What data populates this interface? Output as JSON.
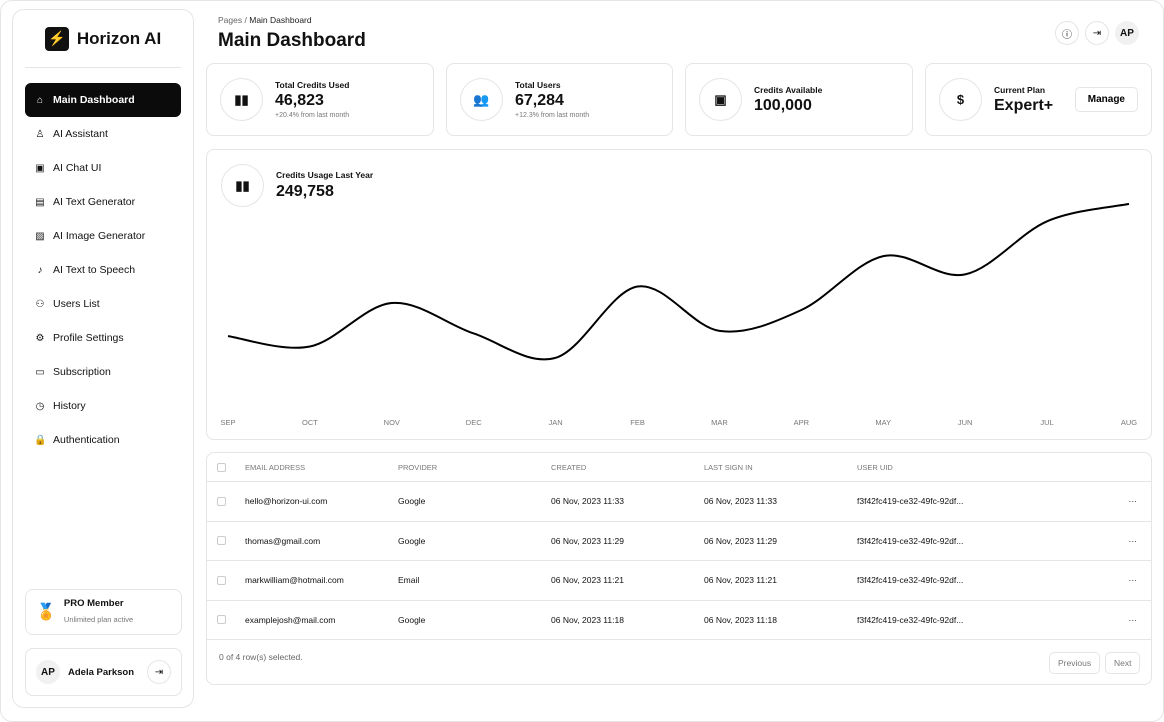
{
  "brand": {
    "name": "Horizon AI",
    "logo_icon": "lightning-icon"
  },
  "sidebar": {
    "items": [
      {
        "label": "Main Dashboard",
        "icon": "home-icon",
        "active": true
      },
      {
        "label": "AI Assistant",
        "icon": "user-icon"
      },
      {
        "label": "AI Chat UI",
        "icon": "chip-icon"
      },
      {
        "label": "AI Text Generator",
        "icon": "document-icon"
      },
      {
        "label": "AI Image Generator",
        "icon": "image-icon"
      },
      {
        "label": "AI Text to Speech",
        "icon": "microphone-icon"
      },
      {
        "label": "Users List",
        "icon": "users-icon"
      },
      {
        "label": "Profile Settings",
        "icon": "gear-icon"
      },
      {
        "label": "Subscription",
        "icon": "credit-card-icon"
      },
      {
        "label": "History",
        "icon": "clock-icon"
      },
      {
        "label": "Authentication",
        "icon": "lock-icon"
      }
    ],
    "pro": {
      "title": "PRO Member",
      "subtitle": "Unlimited plan active"
    },
    "user": {
      "initials": "AP",
      "name": "Adela Parkson"
    }
  },
  "header": {
    "breadcrumb_root": "Pages",
    "breadcrumb_sep": "/",
    "breadcrumb_current": "Main Dashboard",
    "title": "Main Dashboard",
    "avatar": "AP"
  },
  "cards": [
    {
      "label": "Total Credits Used",
      "value": "46,823",
      "sub": "+20.4% from last month",
      "icon": "bar-chart-icon"
    },
    {
      "label": "Total Users",
      "value": "67,284",
      "sub": "+12.3% from last month",
      "icon": "users-icon"
    },
    {
      "label": "Credits Available",
      "value": "100,000",
      "icon": "wallet-icon"
    },
    {
      "label": "Current Plan",
      "value": "Expert+",
      "icon": "dollar-icon",
      "button": "Manage"
    }
  ],
  "chart_data": {
    "type": "line",
    "title": "Credits Usage Last Year",
    "total": "249,758",
    "categories": [
      "SEP",
      "OCT",
      "NOV",
      "DEC",
      "JAN",
      "FEB",
      "MAR",
      "APR",
      "MAY",
      "JUN",
      "JUL",
      "AUG"
    ],
    "values": [
      62,
      50,
      100,
      65,
      37,
      119,
      68,
      92,
      154,
      133,
      194,
      214
    ],
    "ylim": [
      0,
      230
    ],
    "grid": false,
    "color": "#000000"
  },
  "table": {
    "headers": [
      "EMAIL ADDRESS",
      "PROVIDER",
      "CREATED",
      "LAST SIGN IN",
      "USER UID"
    ],
    "rows": [
      [
        "hello@horizon-ui.com",
        "Google",
        "06 Nov, 2023 11:33",
        "06 Nov, 2023 11:33",
        "f3f42fc419-ce32-49fc-92df..."
      ],
      [
        "thomas@gmail.com",
        "Google",
        "06 Nov, 2023 11:29",
        "06 Nov, 2023 11:29",
        "f3f42fc419-ce32-49fc-92df..."
      ],
      [
        "markwilliam@hotmail.com",
        "Email",
        "06 Nov, 2023 11:21",
        "06 Nov, 2023 11:21",
        "f3f42fc419-ce32-49fc-92df..."
      ],
      [
        "examplejosh@mail.com",
        "Google",
        "06 Nov, 2023 11:18",
        "06 Nov, 2023 11:18",
        "f3f42fc419-ce32-49fc-92df..."
      ]
    ],
    "row_menu": "···",
    "selection": "0 of 4 row(s) selected.",
    "previous": "Previous",
    "next": "Next"
  }
}
